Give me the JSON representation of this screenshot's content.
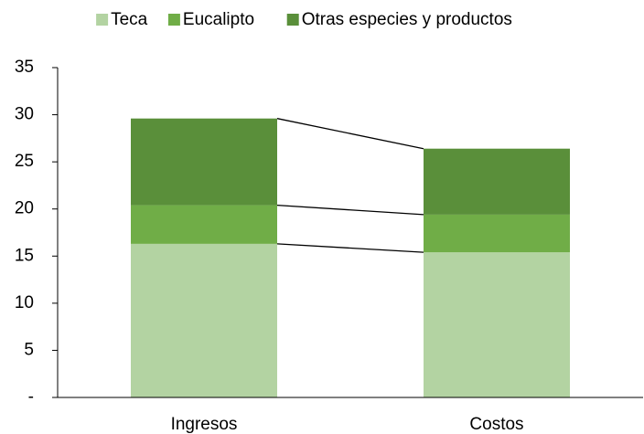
{
  "chart_data": {
    "type": "stacked_bar",
    "categories": [
      "Ingresos",
      "Costos"
    ],
    "series": [
      {
        "name": "Teca",
        "color": "#b3d3a2",
        "values": [
          16.3,
          15.4
        ]
      },
      {
        "name": "Eucalipto",
        "color": "#70ad47",
        "values": [
          4.1,
          4.0
        ]
      },
      {
        "name": "Otras especies y productos",
        "color": "#5a8f3a",
        "values": [
          9.2,
          7.0
        ]
      }
    ],
    "ylim": [
      0,
      35
    ],
    "yticks": [
      {
        "value": 0,
        "label": "-"
      },
      5,
      10,
      15,
      20,
      25,
      30,
      35
    ],
    "legend": "top",
    "series_lines": true
  }
}
